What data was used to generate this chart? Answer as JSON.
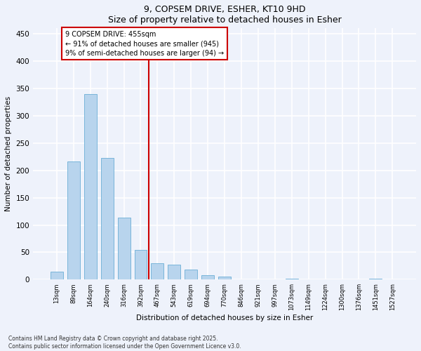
{
  "title1": "9, COPSEM DRIVE, ESHER, KT10 9HD",
  "title2": "Size of property relative to detached houses in Esher",
  "xlabel": "Distribution of detached houses by size in Esher",
  "ylabel": "Number of detached properties",
  "categories": [
    "13sqm",
    "89sqm",
    "164sqm",
    "240sqm",
    "316sqm",
    "392sqm",
    "467sqm",
    "543sqm",
    "619sqm",
    "694sqm",
    "770sqm",
    "846sqm",
    "921sqm",
    "997sqm",
    "1073sqm",
    "1149sqm",
    "1224sqm",
    "1300sqm",
    "1376sqm",
    "1451sqm",
    "1527sqm"
  ],
  "values": [
    15,
    216,
    340,
    223,
    113,
    55,
    30,
    27,
    19,
    8,
    6,
    0,
    0,
    0,
    2,
    0,
    0,
    0,
    0,
    2,
    0
  ],
  "bar_color": "#b8d4ed",
  "bar_edge_color": "#6aaed6",
  "vline_x": 6.0,
  "vline_color": "#cc0000",
  "annotation_text": "9 COPSEM DRIVE: 455sqm\n← 91% of detached houses are smaller (945)\n9% of semi-detached houses are larger (94) →",
  "annotation_box_color": "#ffffff",
  "annotation_box_edge": "#cc0000",
  "ylim": [
    0,
    460
  ],
  "yticks": [
    0,
    50,
    100,
    150,
    200,
    250,
    300,
    350,
    400,
    450
  ],
  "footer1": "Contains HM Land Registry data © Crown copyright and database right 2025.",
  "footer2": "Contains public sector information licensed under the Open Government Licence v3.0.",
  "bg_color": "#eef2fb",
  "grid_color": "#ffffff",
  "bar_width": 0.75
}
